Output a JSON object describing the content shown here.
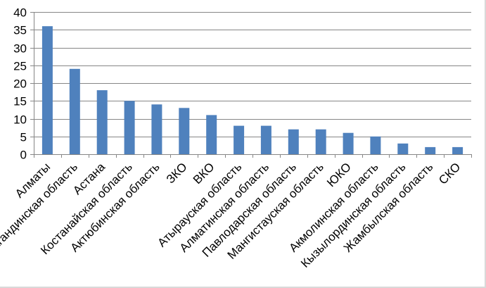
{
  "chart_data": {
    "type": "bar",
    "title": "",
    "xlabel": "",
    "ylabel": "",
    "ylim": [
      0,
      40
    ],
    "yticks": [
      0,
      5,
      10,
      15,
      20,
      25,
      30,
      35,
      40
    ],
    "grid": true,
    "legend": "none",
    "bar_color": "#4f81bd",
    "grid_color": "#868686",
    "categories": [
      "Алматы",
      "Карагандинская область",
      "Астана",
      "Костанайская область",
      "Актюбинская область",
      "ЗКО",
      "ВКО",
      "Атырауская область",
      "Алматинская область",
      "Павлодарская область",
      "Мангистауская область",
      "ЮКО",
      "Акмолинская область",
      "Кызылординская область",
      "Жамбылская область",
      "СКО"
    ],
    "values": [
      36,
      24,
      18,
      15,
      14,
      13,
      11,
      8,
      8,
      7,
      7,
      6,
      5,
      3,
      2,
      2
    ]
  }
}
